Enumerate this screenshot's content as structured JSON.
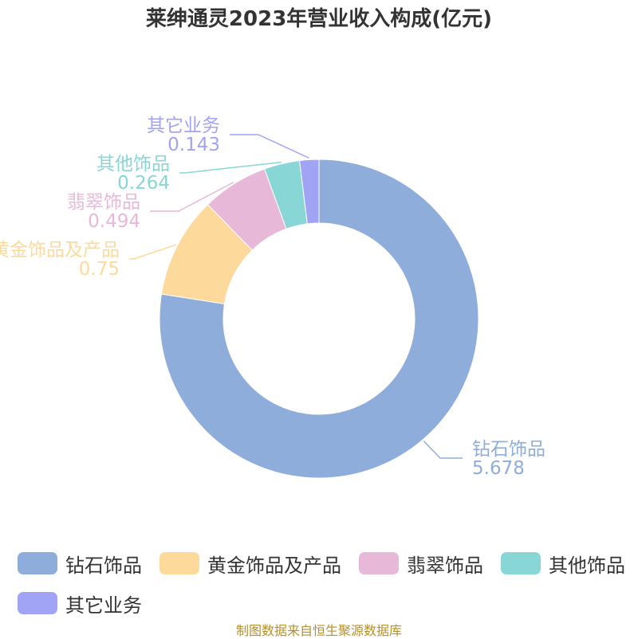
{
  "chart_data": {
    "type": "pie",
    "title": "莱绅通灵2023年营业收入构成(亿元)",
    "categories": [
      "钻石饰品",
      "黄金饰品及产品",
      "翡翠饰品",
      "其他饰品",
      "其它业务"
    ],
    "values": [
      5.678,
      0.75,
      0.494,
      0.264,
      0.143
    ],
    "value_labels": [
      "5.678",
      "0.75",
      "0.494",
      "0.264",
      "0.143"
    ],
    "colors": [
      "#8eaddb",
      "#fdd99b",
      "#e8b8d8",
      "#88d6d6",
      "#a1a4f5"
    ],
    "donut": true,
    "legend_position": "bottom"
  },
  "source": "制图数据来自恒生聚源数据库"
}
